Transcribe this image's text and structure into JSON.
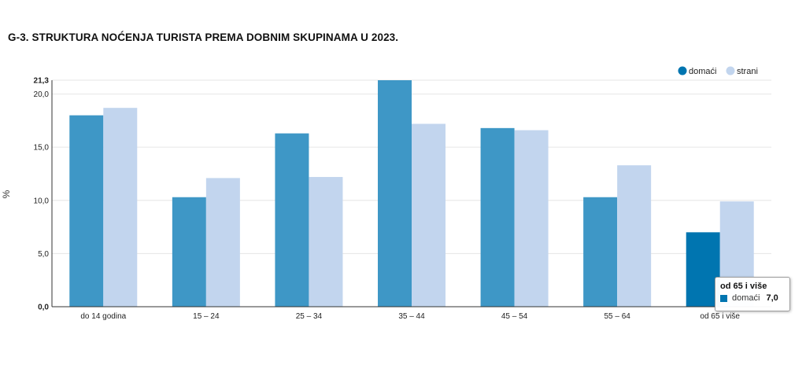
{
  "title": "G-3. STRUKTURA NOĆENJA TURISTA PREMA DOBNIM SKUPINAMA U 2023.",
  "chart_data": {
    "type": "bar",
    "categories": [
      "do 14 godina",
      "15 – 24",
      "25 – 34",
      "35 – 44",
      "45 – 54",
      "55 – 64",
      "od 65 i više"
    ],
    "series": [
      {
        "name": "domaći",
        "color": "#3e97c6",
        "values": [
          18.0,
          10.3,
          16.3,
          21.3,
          16.8,
          10.3,
          7.0
        ]
      },
      {
        "name": "strani",
        "color": "#c2d5ee",
        "values": [
          18.7,
          12.1,
          12.2,
          17.2,
          16.6,
          13.3,
          9.9
        ]
      }
    ],
    "ylabel": "%",
    "ylim": [
      0,
      21.3
    ],
    "yticks": [
      "0,0",
      "5,0",
      "10,0",
      "15,0",
      "20,0",
      "21,3"
    ],
    "ytick_values": [
      0,
      5,
      10,
      15,
      20,
      21.3
    ],
    "grid": true,
    "legend_position": "top-right",
    "highlight_color": "#0075b0",
    "highlight": {
      "series": 0,
      "category": 6
    }
  },
  "tooltip": {
    "title": "od 65 i više",
    "series": "domaći",
    "value": "7,0"
  }
}
